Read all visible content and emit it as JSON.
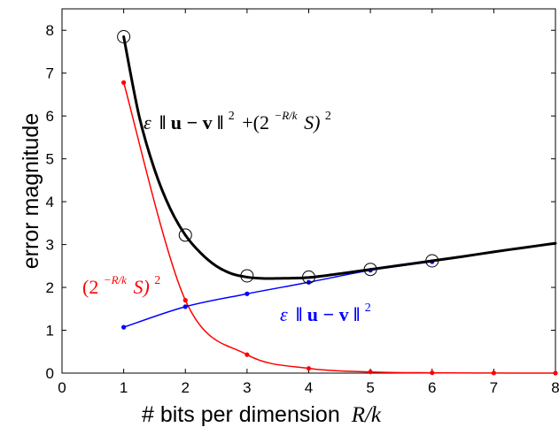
{
  "chart_data": {
    "type": "line",
    "xlabel": "# bits per dimension",
    "xlabel_math": "R/k",
    "ylabel": "error magnitude",
    "xlim": [
      0,
      8
    ],
    "ylim": [
      0,
      8.5
    ],
    "xticks": [
      "0",
      "1",
      "2",
      "3",
      "4",
      "5",
      "6",
      "7",
      "8"
    ],
    "yticks": [
      "0",
      "1",
      "2",
      "3",
      "4",
      "5",
      "6",
      "7",
      "8"
    ],
    "grid": false,
    "annotations": {
      "total": {
        "eps": "ε",
        "norm": "‖ u − v ‖",
        "sq": "2",
        "plus": "+(2",
        "exp": "−R/k",
        "s": "S)",
        "sq2": "2"
      },
      "quant": {
        "open": "(2",
        "exp": "−R/k",
        "s": "S)",
        "sq": "2"
      },
      "dist": {
        "eps": "ε",
        "norm": "‖ u − v ‖",
        "sq": "2"
      }
    },
    "series": [
      {
        "key": "quant",
        "color": "#ff0000",
        "marker": "star",
        "x": [
          1,
          2,
          3,
          4,
          5,
          6,
          7,
          8
        ],
        "y": [
          6.78,
          1.7,
          0.43,
          0.11,
          0.027,
          0.007,
          0.002,
          0.0004
        ]
      },
      {
        "key": "dist",
        "color": "#0000ff",
        "marker": "star",
        "x": [
          1,
          2,
          3,
          4,
          5,
          6
        ],
        "y": [
          1.07,
          1.55,
          1.85,
          2.12,
          2.4,
          2.6
        ]
      },
      {
        "key": "total",
        "color": "#000000",
        "marker": "none",
        "x": [
          1,
          1.25,
          1.5,
          1.75,
          2,
          2.25,
          2.5,
          2.75,
          3,
          3.25,
          3.5,
          4,
          4.5,
          5,
          5.5,
          6,
          6.5,
          7,
          7.5,
          8
        ],
        "y": [
          7.85,
          6.0,
          4.75,
          3.85,
          3.22,
          2.8,
          2.5,
          2.32,
          2.24,
          2.21,
          2.21,
          2.23,
          2.32,
          2.42,
          2.52,
          2.62,
          2.72,
          2.83,
          2.93,
          3.03
        ]
      },
      {
        "key": "total-circles",
        "color": "#000000",
        "marker": "circle",
        "x": [
          1,
          2,
          3,
          4,
          5,
          6
        ],
        "y": [
          7.85,
          3.22,
          2.27,
          2.24,
          2.42,
          2.62
        ]
      }
    ]
  }
}
